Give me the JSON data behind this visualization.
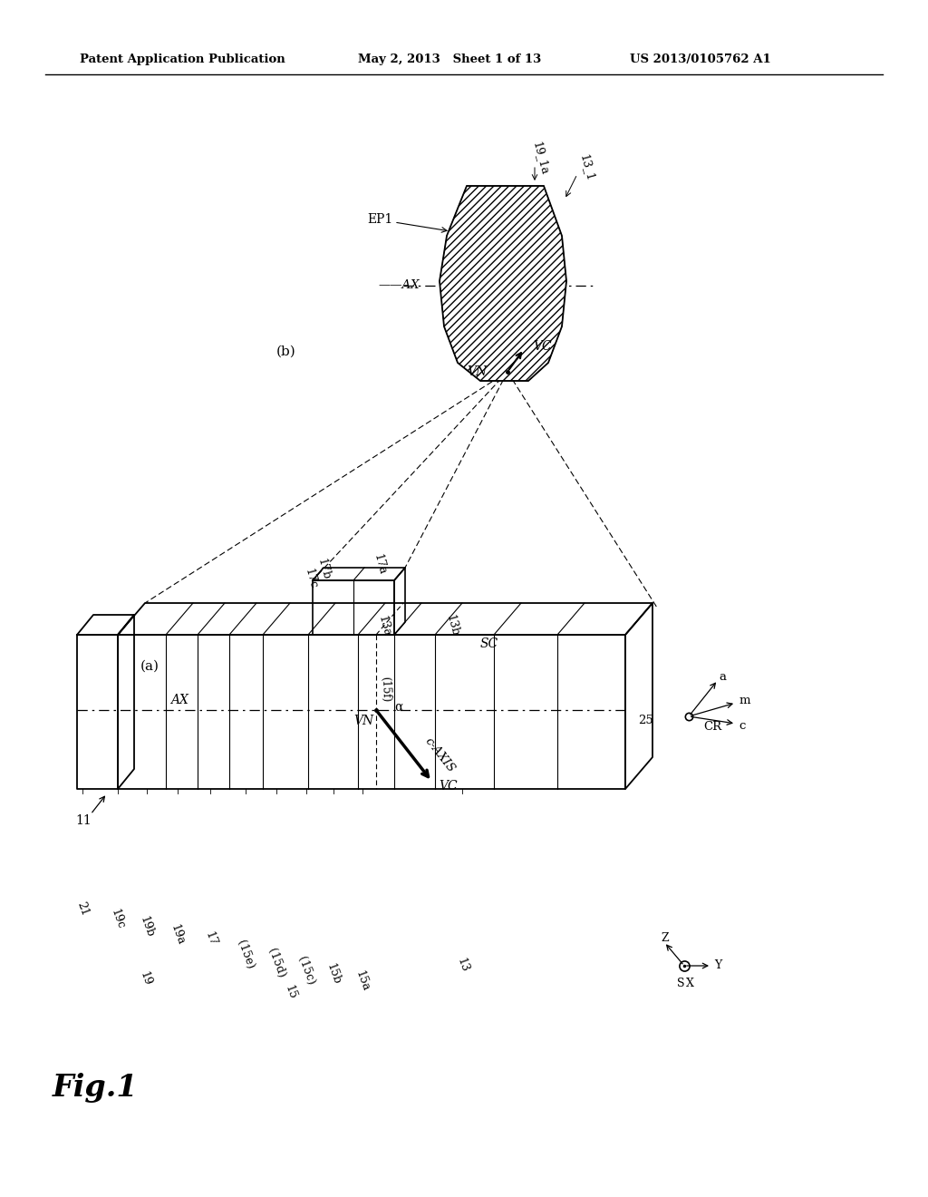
{
  "bg_color": "#ffffff",
  "header_left": "Patent Application Publication",
  "header_mid": "May 2, 2013   Sheet 1 of 13",
  "header_right": "US 2013/0105762 A1",
  "fig_label": "Fig.1"
}
